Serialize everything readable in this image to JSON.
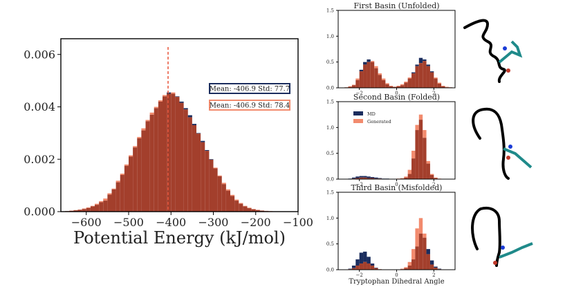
{
  "chart_data": [
    {
      "type": "bar",
      "id": "energy",
      "xlabel": "Potential Energy (kJ/mol)",
      "xlim": [
        -660,
        -100
      ],
      "ylim": [
        0,
        0.0066
      ],
      "xticks": [
        -600,
        -500,
        -400,
        -300,
        -200,
        -100
      ],
      "yticks": [
        0.0,
        0.002,
        0.004,
        0.006
      ],
      "ytick_labels": [
        "0.000",
        "0.002",
        "0.004",
        "0.006"
      ],
      "mean_line_x": -406.9,
      "bin_width": 10,
      "colors": {
        "md": "#1b2d5e",
        "generated": "#f28b6e",
        "overlap": "#a33f2c",
        "mean": "#e8553a"
      },
      "legend": {
        "md": "Mean: -406.9 Std: 77.7",
        "generated": "Mean: -406.9 Std: 78.4"
      },
      "series": [
        {
          "name": "MD",
          "x": [
            -660,
            -650,
            -640,
            -630,
            -620,
            -610,
            -600,
            -590,
            -580,
            -570,
            -560,
            -550,
            -540,
            -530,
            -520,
            -510,
            -500,
            -490,
            -480,
            -470,
            -460,
            -450,
            -440,
            -430,
            -420,
            -410,
            -400,
            -390,
            -380,
            -370,
            -360,
            -350,
            -340,
            -330,
            -320,
            -310,
            -300,
            -290,
            -280,
            -270,
            -260,
            -250,
            -240,
            -230,
            -220,
            -210,
            -200,
            -190,
            -180,
            -170,
            -160,
            -150,
            -140,
            -130,
            -120,
            -110
          ],
          "values": [
            1e-05,
            2e-05,
            3e-05,
            5e-05,
            7e-05,
            0.0001,
            0.00014,
            0.0002,
            0.00026,
            0.00036,
            0.00042,
            0.00065,
            0.00085,
            0.00112,
            0.0014,
            0.00175,
            0.0021,
            0.00245,
            0.0028,
            0.0031,
            0.00345,
            0.0037,
            0.00395,
            0.0042,
            0.0044,
            0.00455,
            0.0045,
            0.0044,
            0.0042,
            0.00395,
            0.00368,
            0.00335,
            0.003,
            0.0027,
            0.00235,
            0.002,
            0.00165,
            0.00135,
            0.00105,
            0.0008,
            0.0006,
            0.00042,
            0.0003,
            0.0002,
            0.00013,
            9e-05,
            6e-05,
            4e-05,
            2e-05,
            1e-05,
            1e-05,
            0.0,
            0.0,
            0.0,
            0.0,
            0.0
          ]
        },
        {
          "name": "Generated",
          "x": [
            -660,
            -650,
            -640,
            -630,
            -620,
            -610,
            -600,
            -590,
            -580,
            -570,
            -560,
            -550,
            -540,
            -530,
            -520,
            -510,
            -500,
            -490,
            -480,
            -470,
            -460,
            -450,
            -440,
            -430,
            -420,
            -410,
            -400,
            -390,
            -380,
            -370,
            -360,
            -350,
            -340,
            -330,
            -320,
            -310,
            -300,
            -290,
            -280,
            -270,
            -260,
            -250,
            -240,
            -230,
            -220,
            -210,
            -200,
            -190,
            -180,
            -170,
            -160,
            -150,
            -140,
            -130,
            -120,
            -110
          ],
          "values": [
            1e-05,
            2e-05,
            4e-05,
            6e-05,
            8e-05,
            0.00012,
            0.00016,
            0.00022,
            0.0003,
            0.0004,
            0.0005,
            0.0007,
            0.00088,
            0.00118,
            0.00145,
            0.0018,
            0.00215,
            0.0025,
            0.00285,
            0.00318,
            0.0035,
            0.00378,
            0.004,
            0.00425,
            0.00445,
            0.0045,
            0.00455,
            0.00438,
            0.00415,
            0.0039,
            0.0036,
            0.0033,
            0.00298,
            0.00265,
            0.00232,
            0.00198,
            0.00168,
            0.00138,
            0.0011,
            0.00085,
            0.00064,
            0.00046,
            0.00033,
            0.00022,
            0.00015,
            0.0001,
            7e-05,
            4e-05,
            3e-05,
            2e-05,
            1e-05,
            1e-05,
            0.0,
            0.0,
            0.0,
            0.0
          ]
        }
      ]
    },
    {
      "type": "bar",
      "id": "basin1",
      "title": "First Basin (Unfolded)",
      "xlim": [
        -3.14,
        3.14
      ],
      "ylim": [
        0,
        1.5
      ],
      "xticks": [
        -2,
        0,
        2
      ],
      "yticks": [
        0.0,
        0.5,
        1.0,
        1.5
      ],
      "ytick_labels": [
        "0.0",
        "0.5",
        "1.0",
        "1.5"
      ],
      "bin_width": 0.2,
      "series": [
        {
          "name": "MD",
          "x": [
            -2.8,
            -2.6,
            -2.4,
            -2.2,
            -2.0,
            -1.8,
            -1.6,
            -1.4,
            -1.2,
            -1.0,
            -0.8,
            -0.6,
            -0.4,
            -0.2,
            0.0,
            0.2,
            0.4,
            0.6,
            0.8,
            1.0,
            1.2,
            1.4,
            1.6,
            1.8,
            2.0,
            2.2,
            2.4,
            2.6,
            2.8
          ],
          "values": [
            0.01,
            0.02,
            0.05,
            0.15,
            0.35,
            0.5,
            0.55,
            0.5,
            0.38,
            0.25,
            0.15,
            0.07,
            0.03,
            0.02,
            0.03,
            0.05,
            0.1,
            0.18,
            0.3,
            0.45,
            0.58,
            0.55,
            0.45,
            0.32,
            0.18,
            0.08,
            0.03,
            0.01,
            0.01
          ]
        },
        {
          "name": "Generated",
          "x": [
            -2.8,
            -2.6,
            -2.4,
            -2.2,
            -2.0,
            -1.8,
            -1.6,
            -1.4,
            -1.2,
            -1.0,
            -0.8,
            -0.6,
            -0.4,
            -0.2,
            0.0,
            0.2,
            0.4,
            0.6,
            0.8,
            1.0,
            1.2,
            1.4,
            1.6,
            1.8,
            2.0,
            2.2,
            2.4,
            2.6,
            2.8
          ],
          "values": [
            0.01,
            0.03,
            0.06,
            0.18,
            0.32,
            0.45,
            0.5,
            0.52,
            0.42,
            0.28,
            0.18,
            0.09,
            0.04,
            0.02,
            0.04,
            0.07,
            0.12,
            0.2,
            0.28,
            0.42,
            0.48,
            0.52,
            0.42,
            0.3,
            0.2,
            0.1,
            0.04,
            0.02,
            0.01
          ]
        }
      ]
    },
    {
      "type": "bar",
      "id": "basin2",
      "title": "Second Basin (Folded)",
      "xlim": [
        -3.14,
        3.14
      ],
      "ylim": [
        0,
        1.5
      ],
      "xticks": [
        -2,
        0,
        2
      ],
      "yticks": [
        0.0,
        0.5,
        1.0,
        1.5
      ],
      "ytick_labels": [
        "0.0",
        "0.5",
        "1.0",
        "1.5"
      ],
      "bin_width": 0.2,
      "legend": [
        "MD",
        "Generated"
      ],
      "series": [
        {
          "name": "MD",
          "x": [
            -2.8,
            -2.6,
            -2.4,
            -2.2,
            -2.0,
            -1.8,
            -1.6,
            -1.4,
            -1.2,
            -1.0,
            -0.8,
            -0.6,
            -0.4,
            -0.2,
            0.0,
            0.2,
            0.4,
            0.6,
            0.8,
            1.0,
            1.2,
            1.4,
            1.6,
            1.8,
            2.0,
            2.2,
            2.4,
            2.6,
            2.8
          ],
          "values": [
            0.0,
            0.01,
            0.03,
            0.05,
            0.06,
            0.06,
            0.05,
            0.04,
            0.03,
            0.02,
            0.01,
            0.01,
            0.0,
            0.0,
            0.0,
            0.01,
            0.03,
            0.1,
            0.4,
            0.95,
            1.15,
            0.8,
            0.3,
            0.08,
            0.02,
            0.0,
            0.0,
            0.0,
            0.0
          ]
        },
        {
          "name": "Generated",
          "x": [
            -2.8,
            -2.6,
            -2.4,
            -2.2,
            -2.0,
            -1.8,
            -1.6,
            -1.4,
            -1.2,
            -1.0,
            -0.8,
            -0.6,
            -0.4,
            -0.2,
            0.0,
            0.2,
            0.4,
            0.6,
            0.8,
            1.0,
            1.2,
            1.4,
            1.6,
            1.8,
            2.0,
            2.2,
            2.4,
            2.6,
            2.8
          ],
          "values": [
            0.0,
            0.0,
            0.01,
            0.02,
            0.03,
            0.03,
            0.02,
            0.02,
            0.01,
            0.01,
            0.0,
            0.0,
            0.0,
            0.0,
            0.01,
            0.02,
            0.05,
            0.18,
            0.55,
            1.05,
            1.25,
            0.95,
            0.35,
            0.1,
            0.03,
            0.01,
            0.0,
            0.0,
            0.0
          ]
        }
      ]
    },
    {
      "type": "bar",
      "id": "basin3",
      "title": "Third Basin (Misfolded)",
      "xlabel": "Tryptophan Dihedral Angle",
      "xlim": [
        -3.14,
        3.14
      ],
      "ylim": [
        0,
        1.5
      ],
      "xticks": [
        -2,
        0,
        2
      ],
      "yticks": [
        0.0,
        0.5,
        1.0,
        1.5
      ],
      "ytick_labels": [
        "0.0",
        "0.5",
        "1.0",
        "1.5"
      ],
      "bin_width": 0.2,
      "series": [
        {
          "name": "MD",
          "x": [
            -2.8,
            -2.6,
            -2.4,
            -2.2,
            -2.0,
            -1.8,
            -1.6,
            -1.4,
            -1.2,
            -1.0,
            -0.8,
            -0.6,
            -0.4,
            -0.2,
            0.0,
            0.2,
            0.4,
            0.6,
            0.8,
            1.0,
            1.2,
            1.4,
            1.6,
            1.8,
            2.0,
            2.2,
            2.4,
            2.6,
            2.8
          ],
          "values": [
            0.0,
            0.02,
            0.08,
            0.2,
            0.33,
            0.35,
            0.25,
            0.12,
            0.04,
            0.01,
            0.0,
            0.0,
            0.0,
            0.0,
            0.0,
            0.01,
            0.03,
            0.08,
            0.2,
            0.45,
            0.7,
            0.62,
            0.4,
            0.18,
            0.06,
            0.02,
            0.0,
            0.0,
            0.0
          ]
        },
        {
          "name": "Generated",
          "x": [
            -2.8,
            -2.6,
            -2.4,
            -2.2,
            -2.0,
            -1.8,
            -1.6,
            -1.4,
            -1.2,
            -1.0,
            -0.8,
            -0.6,
            -0.4,
            -0.2,
            0.0,
            0.2,
            0.4,
            0.6,
            0.8,
            1.0,
            1.2,
            1.4,
            1.6,
            1.8,
            2.0,
            2.2,
            2.4,
            2.6,
            2.8
          ],
          "values": [
            0.0,
            0.01,
            0.03,
            0.08,
            0.12,
            0.15,
            0.12,
            0.08,
            0.03,
            0.01,
            0.0,
            0.0,
            0.0,
            0.0,
            0.0,
            0.02,
            0.05,
            0.15,
            0.4,
            0.8,
            1.0,
            0.7,
            0.3,
            0.1,
            0.04,
            0.01,
            0.0,
            0.0,
            0.0
          ]
        }
      ]
    }
  ]
}
